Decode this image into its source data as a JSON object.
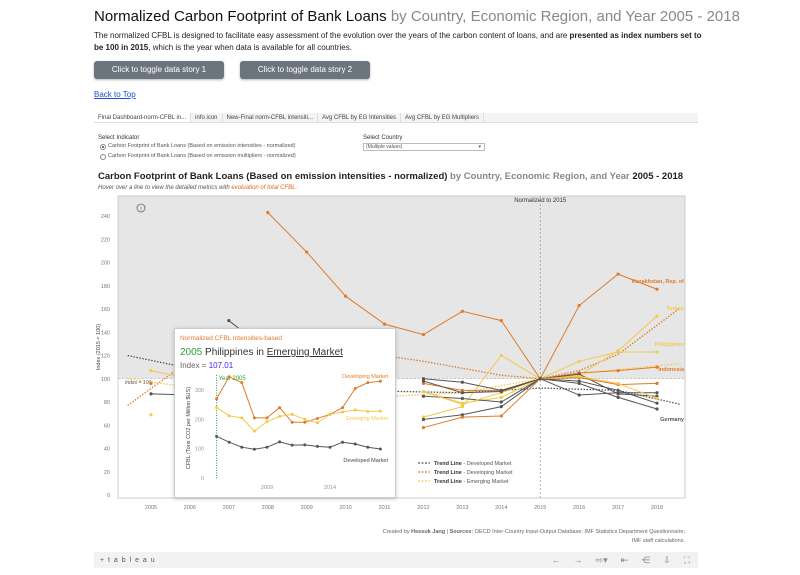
{
  "header": {
    "title": "Normalized Carbon Footprint of Bank Loans",
    "title_sub": "by Country, Economic Region, and Year 2005 - 2018",
    "intro_a": "The normalized CFBL is designed to facilitate easy assessment of the evolution over the years of the carbon content of loans, and are ",
    "intro_bold": "presented as index numbers set to be 100 in 2015",
    "intro_b": ", which is the year when data is available for all countries."
  },
  "buttons": {
    "story1": "Click to toggle data story 1",
    "story2": "Click to toggle data story 2",
    "back": "Back to Top"
  },
  "tabs": [
    "Final Dashboard-norm-CFBL in...",
    "info icon",
    "New-Final norm-CFBL intensiti...",
    "Avg CFBL by EG Intensities",
    "Avg CFBL by EG Multipliers"
  ],
  "filters": {
    "indicator_label": "Select Indicator",
    "options": [
      "Carbon Footprint of Bank Loans (Based on emission intensities - normalized)",
      "Carbon Footprint of Bank Loans (Based on emission multipliers - normalized)"
    ],
    "selected": 0,
    "country_label": "Select Country",
    "country_value": "(Multiple values)"
  },
  "chart_heading": {
    "bold": "Carbon Footprint of Bank Loans (Based on emission intensities - normalized)",
    "grey": " by Country, Economic Region, and Year ",
    "years": "2005 - 2018",
    "hint": "Hover over a line to view the detailed metrics with ",
    "hint_link": "evoluation of total CFBL."
  },
  "colors": {
    "developed": "#555555",
    "developing": "#e07b2a",
    "emerging": "#f2c94c",
    "shade": "#e6e6e6",
    "accent_green": "#2e9e3e",
    "accent_blue": "#3a2bf5"
  },
  "chart_data": {
    "type": "line",
    "ylabel": "Index (2015 = 100)",
    "ylim": [
      0,
      250
    ],
    "yticks": [
      0,
      20,
      40,
      60,
      80,
      100,
      120,
      140,
      160,
      180,
      200,
      220,
      240
    ],
    "x": [
      2005,
      2006,
      2007,
      2008,
      2009,
      2010,
      2011,
      2012,
      2013,
      2014,
      2015,
      2016,
      2017,
      2018
    ],
    "reference_line_label": "Normalized to 2015",
    "baseline_label": "Index = 100",
    "series": [
      {
        "name": "Kazakhstan, Rep. of",
        "group": "developing",
        "values": [
          null,
          null,
          null,
          243,
          209,
          171,
          147,
          138,
          158,
          150,
          100,
          163,
          190,
          177
        ]
      },
      {
        "name": "Turkey",
        "group": "emerging",
        "values": [
          null,
          null,
          null,
          null,
          null,
          null,
          null,
          89,
          79,
          84,
          100,
          103,
          124,
          154
        ]
      },
      {
        "name": "Philippines",
        "group": "emerging",
        "values": [
          107,
          100,
          null,
          null,
          null,
          null,
          null,
          67,
          76,
          120,
          100,
          115,
          123,
          123
        ]
      },
      {
        "name": "Indonesia",
        "group": "developing",
        "values": [
          96,
          null,
          null,
          null,
          null,
          null,
          null,
          96,
          90,
          90,
          100,
          105,
          107,
          110
        ]
      },
      {
        "name": "Germany",
        "group": "developed",
        "values": [
          87,
          86,
          null,
          null,
          null,
          null,
          null,
          65,
          69,
          76,
          100,
          96,
          84,
          74
        ]
      },
      {
        "group": "developed",
        "values": [
          null,
          null,
          150,
          124,
          null,
          null,
          null,
          100,
          97,
          90,
          100,
          104,
          87,
          85
        ]
      },
      {
        "group": "developed",
        "values": [
          null,
          null,
          null,
          null,
          null,
          null,
          null,
          85,
          83,
          80,
          100,
          86,
          88,
          88
        ]
      },
      {
        "group": "developing",
        "values": [
          null,
          null,
          null,
          null,
          null,
          null,
          null,
          58,
          67,
          68,
          100,
          101,
          95,
          96
        ]
      },
      {
        "group": "emerging",
        "values": [
          69,
          null,
          null,
          null,
          null,
          null,
          null,
          89,
          78,
          88,
          100,
          102,
          96,
          83
        ]
      },
      {
        "group": "developed",
        "values": [
          null,
          null,
          null,
          null,
          null,
          null,
          null,
          98,
          88,
          89,
          100,
          98,
          90,
          79
        ]
      }
    ],
    "trend_lines": [
      {
        "name": "Developed Market",
        "prefix": "Trend Line",
        "x": [
          2004.4,
          2007,
          2010,
          2013,
          2015,
          2017,
          2018.6
        ],
        "values": [
          120,
          102,
          90,
          88,
          92,
          90,
          78
        ]
      },
      {
        "name": "Developing Market",
        "prefix": "Trend Line",
        "x": [
          2004.4,
          2006,
          2008,
          2010,
          2012,
          2014,
          2015,
          2016,
          2017,
          2018.6
        ],
        "values": [
          77,
          116,
          130,
          125,
          115,
          103,
          100,
          107,
          121,
          161
        ]
      },
      {
        "name": "Emerging Market",
        "prefix": "Trend Line",
        "x": [
          2004.4,
          2007,
          2010,
          2013,
          2015,
          2017,
          2018.6
        ],
        "values": [
          100,
          88,
          83,
          88,
          100,
          108,
          113
        ]
      }
    ],
    "legend_placement": "bottom-right"
  },
  "tooltip": {
    "title": "Normalized CFBL Intensities-based",
    "year": "2005",
    "country": "Philippines",
    "in": "in",
    "region": "Emerging Market",
    "index_label": "Index = ",
    "index_value": "107.01",
    "marker_label": "Year 2005",
    "chart_data": {
      "type": "line",
      "ylabel": "CFBL (Tons CO2 per Million $US)",
      "ylim": [
        0,
        350
      ],
      "yticks": [
        0,
        100,
        200,
        300
      ],
      "xticks": [
        2009,
        2014
      ],
      "x": [
        2005,
        2006,
        2007,
        2008,
        2009,
        2010,
        2011,
        2012,
        2013,
        2014,
        2015,
        2016,
        2017,
        2018
      ],
      "series": [
        {
          "name": "Developing Market",
          "values": [
            270,
            345,
            325,
            205,
            205,
            240,
            190,
            190,
            203,
            217,
            240,
            305,
            325,
            330
          ]
        },
        {
          "name": "Emerging Market",
          "values": [
            240,
            212,
            205,
            160,
            192,
            210,
            217,
            200,
            188,
            217,
            225,
            232,
            227,
            228
          ]
        },
        {
          "name": "Developed Market",
          "values": [
            142,
            122,
            105,
            98,
            105,
            123,
            112,
            113,
            108,
            105,
            122,
            116,
            105,
            99
          ]
        }
      ]
    }
  },
  "credit": {
    "prefix": "Created by ",
    "author": "Heesuk Jang",
    "sep": " | ",
    "sources_label": "Sources:",
    "sources": " OECD Inter-Country Input-Output Database; IMF Statistics Department Questionnaire; IMF staff calculations."
  },
  "toolbar": {
    "logo": "+ t a b l e a u",
    "icons": [
      "undo-icon",
      "redo-icon",
      "revert-icon",
      "reset-icon",
      "share-icon",
      "download-icon",
      "fullscreen-icon"
    ]
  }
}
